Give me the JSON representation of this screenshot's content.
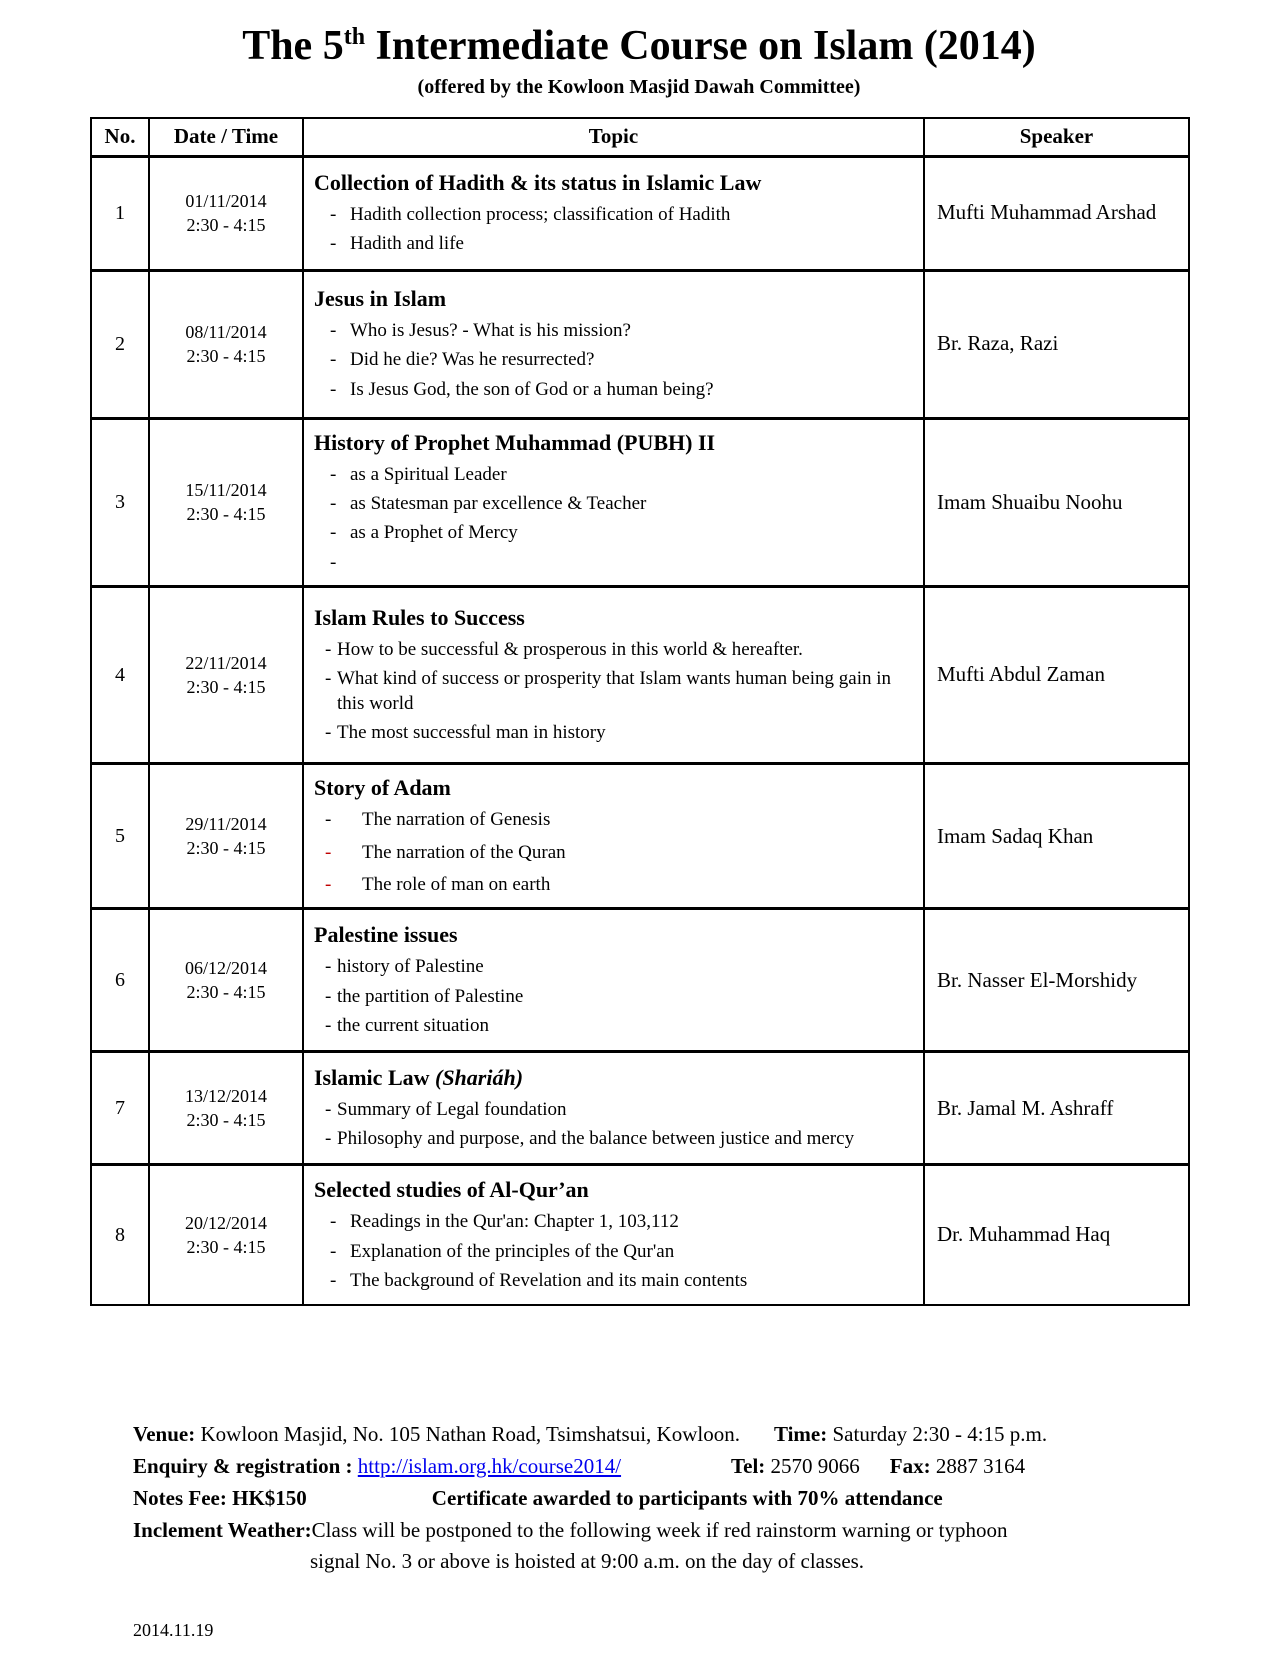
{
  "title": {
    "prefix": "The 5",
    "superscript": "th",
    "suffix": " Intermediate Course on Islam (2014)"
  },
  "subtitle": "(offered by the Kowloon Masjid Dawah Committee)",
  "bullet_dash": "-",
  "colors": {
    "red_dash": "#C00000",
    "link_blue": "#0000EE",
    "text": "#000000"
  },
  "table": {
    "headers": [
      "No.",
      "Date / Time",
      "Topic",
      "Speaker"
    ],
    "rows": [
      {
        "no": "1",
        "date": "01/11/2014",
        "time": "2:30 - 4:15",
        "title": "Collection of Hadith & its status in Islamic Law",
        "bullets": [
          {
            "text": "Hadith collection process; classification of Hadith"
          },
          {
            "text": "Hadith and life"
          }
        ],
        "speaker": "Mufti Muhammad Arshad"
      },
      {
        "no": "2",
        "date": "08/11/2014",
        "time": "2:30 - 4:15",
        "title": "Jesus in Islam",
        "bullets": [
          {
            "text": "Who is Jesus? - What is his mission?"
          },
          {
            "text": "Did he die? Was he resurrected?"
          },
          {
            "text": "Is Jesus God, the son of God or a human being?"
          }
        ],
        "speaker": "Br. Raza, Razi"
      },
      {
        "no": "3",
        "date": "15/11/2014",
        "time": "2:30 - 4:15",
        "title": "History of Prophet Muhammad (PUBH) II",
        "bullets": [
          {
            "text": "as a Spiritual Leader"
          },
          {
            "text": "as Statesman par excellence & Teacher"
          },
          {
            "text": "as a Prophet of Mercy"
          },
          {
            "text": ""
          }
        ],
        "speaker": "Imam Shuaibu Noohu"
      },
      {
        "no": "4",
        "date": "22/11/2014",
        "time": "2:30 - 4:15",
        "title": "Islam Rules to Success",
        "bullets": [
          {
            "text": "How to be successful & prosperous in this world & hereafter."
          },
          {
            "text": "What kind of success or prosperity that Islam wants human being gain in this world"
          },
          {
            "text": "The most successful man in history"
          }
        ],
        "speaker": "Mufti Abdul Zaman"
      },
      {
        "no": "5",
        "date": "29/11/2014",
        "time": "2:30 - 4:15",
        "title": "Story of Adam",
        "bullets": [
          {
            "text": "The narration of Genesis"
          },
          {
            "text": "The narration of the Quran",
            "red": true
          },
          {
            "text": "The role of man on earth",
            "red": true
          }
        ],
        "speaker": "Imam Sadaq Khan"
      },
      {
        "no": "6",
        "date": "06/12/2014",
        "time": "2:30 - 4:15",
        "title": "Palestine issues",
        "bullets": [
          {
            "text": "history of Palestine"
          },
          {
            "text": "the partition of Palestine"
          },
          {
            "text": "the current situation"
          }
        ],
        "speaker": "Br. Nasser El-Morshidy"
      },
      {
        "no": "7",
        "date": "13/12/2014",
        "time": "2:30 - 4:15",
        "title": "Islamic Law ",
        "title_italic": "(Shariáh)",
        "bullets": [
          {
            "text": "Summary of Legal foundation"
          },
          {
            "text": "Philosophy and purpose, and the balance between justice and mercy"
          }
        ],
        "speaker": "Br. Jamal M. Ashraff"
      },
      {
        "no": "8",
        "date": "20/12/2014",
        "time": "2:30 - 4:15",
        "title": "Selected studies of Al-Qur’an",
        "bullets": [
          {
            "text": "Readings in the Qur'an: Chapter 1, 103,112"
          },
          {
            "text": "Explanation of the principles of the Qur'an"
          },
          {
            "text": "The background of Revelation and its main contents"
          }
        ],
        "speaker": "Dr. Muhammad Haq"
      }
    ]
  },
  "footer": {
    "venue_label": "Venue:",
    "venue_value": " Kowloon Masjid, No. 105 Nathan Road, Tsimshatsui, Kowloon.",
    "time_label": "Time:",
    "time_value": " Saturday 2:30 - 4:15 p.m.",
    "enquiry_label": "Enquiry & registration : ",
    "enquiry_link": "http://islam.org.hk/course2014/",
    "tel_label": "Tel:",
    "tel_value": " 2570 9066",
    "fax_label": "Fax:",
    "fax_value": " 2887 3164",
    "notes_fee": "Notes Fee: HK$150",
    "certificate": "Certificate awarded to participants with 70% attendance",
    "weather_label": "Inclement Weather:",
    "weather_text": "Class will be postponed to the following week if red rainstorm warning or typhoon",
    "weather_text2": "signal No. 3 or above is hoisted at 9:00 a.m. on the day of classes."
  },
  "doc_date": "2014.11.19"
}
